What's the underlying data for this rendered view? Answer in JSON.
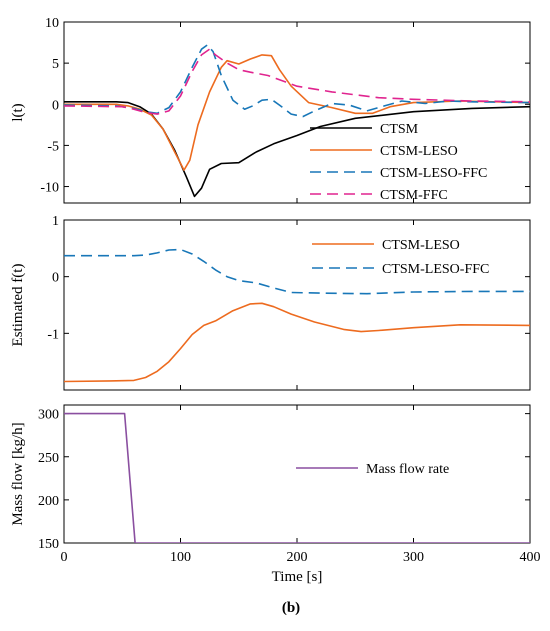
{
  "figure": {
    "caption": "(b)"
  },
  "chart_data": [
    {
      "type": "line",
      "ylabel": "l(t)",
      "xlabel": "",
      "xlim": [
        0,
        400
      ],
      "ylim": [
        -12,
        10
      ],
      "xticks": [
        0,
        100,
        200,
        300,
        400
      ],
      "yticks": [
        10,
        5,
        0,
        -5,
        -10
      ],
      "show_x_tick_labels": false,
      "legend_position": "bottom-right",
      "series": [
        {
          "name": "CTSM",
          "color": "#000000",
          "dash": "solid",
          "x": [
            0,
            45,
            55,
            65,
            75,
            85,
            95,
            105,
            112,
            118,
            125,
            135,
            150,
            165,
            180,
            200,
            220,
            250,
            300,
            350,
            400
          ],
          "y": [
            0.3,
            0.3,
            0.2,
            -0.3,
            -1.2,
            -3.0,
            -5.6,
            -8.8,
            -11.2,
            -10.2,
            -7.9,
            -7.2,
            -7.1,
            -5.8,
            -4.8,
            -3.8,
            -2.7,
            -1.7,
            -0.9,
            -0.5,
            -0.3
          ]
        },
        {
          "name": "CTSM-LESO",
          "color": "#ED6B1F",
          "dash": "solid",
          "x": [
            0,
            45,
            55,
            65,
            75,
            85,
            95,
            103,
            108,
            115,
            125,
            135,
            140,
            150,
            160,
            170,
            178,
            185,
            195,
            210,
            230,
            250,
            265,
            280,
            300,
            340,
            400
          ],
          "y": [
            0,
            0,
            -0.2,
            -0.6,
            -1.3,
            -3.0,
            -5.8,
            -8.0,
            -6.8,
            -2.5,
            1.5,
            4.5,
            5.3,
            4.9,
            5.5,
            6.0,
            5.9,
            4.2,
            2.2,
            0.2,
            -0.4,
            -1.1,
            -1.1,
            -0.3,
            0.2,
            0.4,
            0.2
          ]
        },
        {
          "name": "CTSM-LESO-FFC",
          "color": "#1877B8",
          "dash": "dashed",
          "x": [
            0,
            45,
            60,
            70,
            80,
            90,
            100,
            110,
            118,
            123,
            128,
            135,
            145,
            155,
            162,
            170,
            178,
            185,
            195,
            205,
            215,
            230,
            245,
            260,
            275,
            290,
            310,
            330,
            350,
            400
          ],
          "y": [
            -0.1,
            -0.2,
            -0.5,
            -0.9,
            -1.1,
            -0.4,
            1.5,
            4.5,
            6.7,
            7.2,
            6.4,
            3.5,
            0.5,
            -0.6,
            -0.2,
            0.5,
            0.6,
            -0.1,
            -1.2,
            -1.5,
            -0.8,
            0.1,
            -0.1,
            -0.8,
            -0.2,
            0.4,
            0.1,
            0.4,
            0.3,
            0.2
          ]
        },
        {
          "name": "CTSM-FFC",
          "color": "#E0248F",
          "dash": "dashed",
          "x": [
            0,
            50,
            60,
            70,
            80,
            90,
            100,
            110,
            118,
            125,
            130,
            140,
            150,
            160,
            175,
            200,
            230,
            270,
            300,
            350,
            400
          ],
          "y": [
            -0.2,
            -0.3,
            -0.6,
            -1.0,
            -1.2,
            -0.8,
            1.0,
            4.0,
            6.0,
            6.7,
            6.0,
            5.0,
            4.2,
            3.9,
            3.5,
            2.2,
            1.5,
            0.8,
            0.6,
            0.4,
            0.3
          ]
        }
      ]
    },
    {
      "type": "line",
      "ylabel": "Estimated f(t)",
      "xlabel": "",
      "xlim": [
        0,
        400
      ],
      "ylim": [
        -2,
        1
      ],
      "xticks": [
        0,
        100,
        200,
        300,
        400
      ],
      "yticks": [
        1,
        0,
        -1
      ],
      "show_x_tick_labels": false,
      "legend_position": "top-right",
      "series": [
        {
          "name": "CTSM-LESO",
          "color": "#ED6B1F",
          "dash": "solid",
          "x": [
            0,
            40,
            60,
            70,
            80,
            90,
            100,
            110,
            120,
            130,
            145,
            160,
            170,
            180,
            195,
            215,
            240,
            255,
            270,
            300,
            340,
            400
          ],
          "y": [
            -1.85,
            -1.84,
            -1.83,
            -1.78,
            -1.67,
            -1.5,
            -1.27,
            -1.02,
            -0.86,
            -0.78,
            -0.6,
            -0.48,
            -0.47,
            -0.53,
            -0.66,
            -0.8,
            -0.93,
            -0.97,
            -0.95,
            -0.9,
            -0.85,
            -0.86
          ]
        },
        {
          "name": "CTSM-LESO-FFC",
          "color": "#1877B8",
          "dash": "dashed",
          "x": [
            0,
            60,
            70,
            80,
            90,
            100,
            110,
            120,
            130,
            140,
            150,
            165,
            180,
            195,
            220,
            260,
            300,
            350,
            400
          ],
          "y": [
            0.37,
            0.37,
            0.38,
            0.42,
            0.47,
            0.48,
            0.4,
            0.27,
            0.12,
            0.0,
            -0.07,
            -0.11,
            -0.2,
            -0.28,
            -0.29,
            -0.3,
            -0.27,
            -0.26,
            -0.26
          ]
        }
      ]
    },
    {
      "type": "line",
      "ylabel": "Mass flow [kg/h]",
      "xlabel": "Time [s]",
      "xlim": [
        0,
        400
      ],
      "ylim": [
        150,
        310
      ],
      "xticks": [
        0,
        100,
        200,
        300,
        400
      ],
      "yticks": [
        300,
        250,
        200,
        150
      ],
      "show_x_tick_labels": true,
      "legend_position": "center-right",
      "series": [
        {
          "name": "Mass flow rate",
          "color": "#8A4FA0",
          "dash": "solid",
          "x": [
            0,
            52,
            61,
            400
          ],
          "y": [
            300,
            300,
            150,
            150
          ]
        }
      ]
    }
  ]
}
